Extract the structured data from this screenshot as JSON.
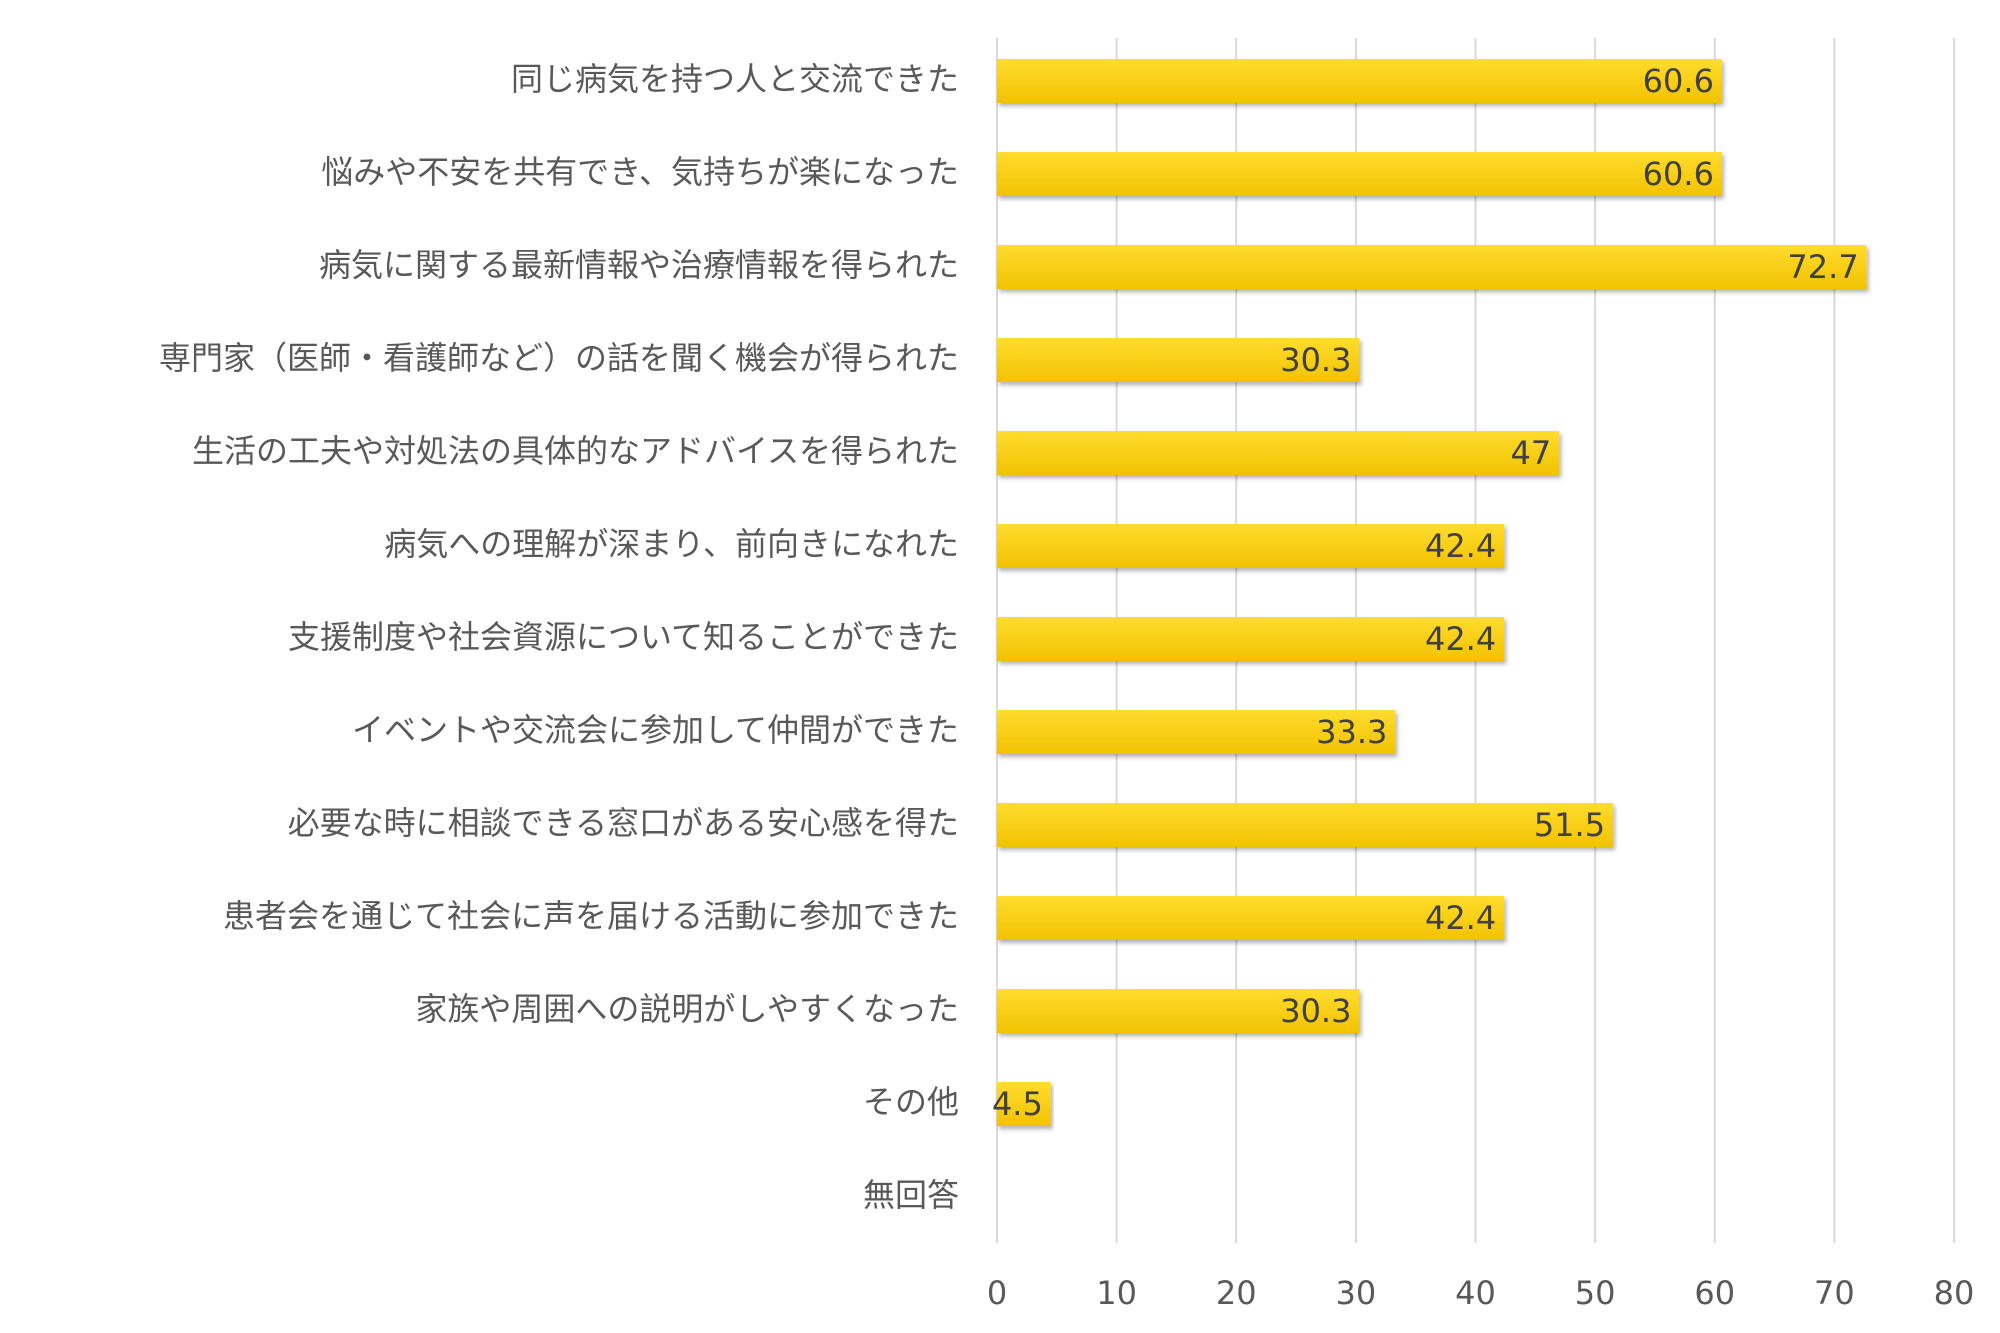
{
  "chart_data": {
    "type": "hbar",
    "categories": [
      "同じ病気を持つ人と交流できた",
      "悩みや不安を共有でき、気持ちが楽になった",
      "病気に関する最新情報や治療情報を得られた",
      "専門家（医師・看護師など）の話を聞く機会が得られた",
      "生活の工夫や対処法の具体的なアドバイスを得られた",
      "病気への理解が深まり、前向きになれた",
      "支援制度や社会資源について知ることができた",
      "イベントや交流会に参加して仲間ができた",
      "必要な時に相談できる窓口がある安心感を得た",
      "患者会を通じて社会に声を届ける活動に参加できた",
      "家族や周囲への説明がしやすくなった",
      "その他",
      "無回答"
    ],
    "values": [
      60.6,
      60.6,
      72.7,
      30.3,
      47,
      42.4,
      42.4,
      33.3,
      51.5,
      42.4,
      30.3,
      4.5,
      null
    ],
    "color": "#ffd000",
    "xlim": [
      0,
      80
    ],
    "xticks": [
      0,
      10,
      20,
      30,
      40,
      50,
      60,
      70,
      80
    ],
    "grid": true
  }
}
